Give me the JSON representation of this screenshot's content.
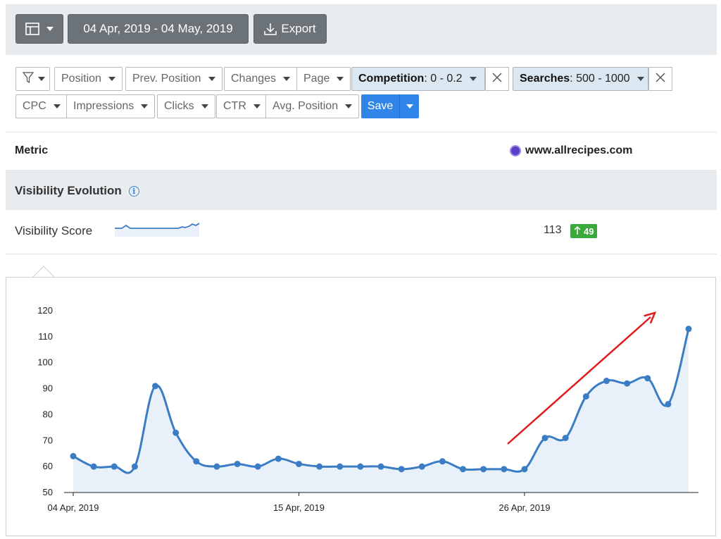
{
  "toolbar": {
    "date_range": "04 Apr, 2019 - 04 May, 2019",
    "export_label": "Export",
    "layout_icon": "layout-icon",
    "export_icon": "download-icon"
  },
  "filters": {
    "row1": [
      "Position",
      "Prev. Position",
      "Changes",
      "Page"
    ],
    "competition": {
      "name": "Competition",
      "value": " : 0 - 0.2"
    },
    "searches": {
      "name": "Searches",
      "value": " : 500 - 1000"
    },
    "row2": [
      "CPC",
      "Impressions",
      "Clicks",
      "CTR",
      "Avg. Position"
    ],
    "save_label": "Save"
  },
  "table": {
    "metric_header": "Metric",
    "site": "www.allrecipes.com",
    "section_title": "Visibility Evolution",
    "info_icon": "i",
    "score_label": "Visibility Score",
    "score_value": "113",
    "score_change": "49"
  },
  "colors": {
    "accent": "#2f86e8",
    "series": "#3b7dc4",
    "fill": "#e8f0fa",
    "badge": "#3aa83a",
    "arrow": "#e01b1b"
  },
  "chart_data": {
    "type": "area",
    "title": "",
    "xlabel": "",
    "ylabel": "",
    "ylim": [
      50,
      120
    ],
    "yticks": [
      50,
      60,
      70,
      80,
      90,
      100,
      110,
      120
    ],
    "x_tick_labels": [
      "04 Apr, 2019",
      "15 Apr, 2019",
      "26 Apr, 2019"
    ],
    "x_tick_index": [
      0,
      11,
      22
    ],
    "series": [
      {
        "name": "",
        "values": [
          64,
          60,
          60,
          60,
          91,
          73,
          62,
          60,
          61,
          60,
          63,
          61,
          60,
          60,
          60,
          60,
          59,
          60,
          62,
          59,
          59,
          59,
          59,
          71,
          71,
          87,
          93,
          92,
          94,
          84,
          113
        ]
      }
    ],
    "annotation": "red trend arrow pointing up-right"
  }
}
